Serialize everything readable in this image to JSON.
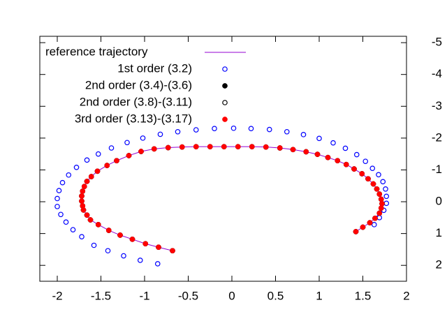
{
  "chart_data": {
    "type": "scatter",
    "xlim": [
      -2.2,
      2
    ],
    "xticks": [
      -2,
      -1.5,
      -1,
      -0.5,
      0,
      0.5,
      1,
      1.5,
      2
    ],
    "ylim": [
      -5.2,
      2.5
    ],
    "yticks": [
      -5,
      -4,
      -3,
      -2,
      -1,
      0,
      1,
      2
    ],
    "y_reversed": true,
    "y_axis_side": "right",
    "legend": "upper left",
    "series": [
      {
        "name": "reference trajectory",
        "color": "#9400d3",
        "style": "line",
        "x": [
          -0.68,
          -0.84,
          -0.99,
          -1.14,
          -1.28,
          -1.41,
          -1.53,
          -1.62,
          -1.66,
          -1.7,
          -1.71,
          -1.72,
          -1.72,
          -1.71,
          -1.69,
          -1.66,
          -1.61,
          -1.54,
          -1.43,
          -1.32,
          -1.18,
          -1.04,
          -0.89,
          -0.73,
          -0.57,
          -0.41,
          -0.25,
          -0.09,
          0.07,
          0.23,
          0.39,
          0.55,
          0.7,
          0.85,
          0.98,
          1.1,
          1.21,
          1.31,
          1.4,
          1.49,
          1.56,
          1.62,
          1.66,
          1.69,
          1.71,
          1.72,
          1.71,
          1.69,
          1.64,
          1.58,
          1.5,
          1.42
        ],
        "values": [
          1.54,
          1.43,
          1.32,
          1.18,
          1.05,
          0.9,
          0.72,
          0.57,
          0.42,
          0.26,
          0.13,
          -0.02,
          -0.18,
          -0.33,
          -0.48,
          -0.64,
          -0.79,
          -0.96,
          -1.14,
          -1.29,
          -1.45,
          -1.58,
          -1.66,
          -1.7,
          -1.72,
          -1.73,
          -1.73,
          -1.73,
          -1.73,
          -1.73,
          -1.72,
          -1.69,
          -1.64,
          -1.57,
          -1.49,
          -1.39,
          -1.29,
          -1.17,
          -1.03,
          -0.88,
          -0.72,
          -0.56,
          -0.4,
          -0.24,
          -0.08,
          0.06,
          0.2,
          0.36,
          0.52,
          0.66,
          0.8,
          0.94
        ]
      },
      {
        "name": "1st order (3.2)",
        "color": "#0000ff",
        "style": "open",
        "x": [
          -0.85,
          -1.05,
          -1.24,
          -1.42,
          -1.58,
          -1.72,
          -1.82,
          -1.9,
          -1.96,
          -2.0,
          -2.0,
          -1.98,
          -1.94,
          -1.87,
          -1.78,
          -1.66,
          -1.53,
          -1.38,
          -1.2,
          -1.02,
          -0.82,
          -0.62,
          -0.41,
          -0.2,
          0.02,
          0.22,
          0.43,
          0.63,
          0.82,
          1.0,
          1.16,
          1.3,
          1.43,
          1.53,
          1.61,
          1.68,
          1.73,
          1.76,
          1.77,
          1.77,
          1.74,
          1.69,
          1.63
        ],
        "values": [
          1.95,
          1.84,
          1.7,
          1.54,
          1.37,
          1.1,
          0.88,
          0.64,
          0.4,
          0.15,
          -0.1,
          -0.35,
          -0.6,
          -0.84,
          -1.08,
          -1.31,
          -1.5,
          -1.69,
          -1.86,
          -2.0,
          -2.12,
          -2.2,
          -2.26,
          -2.3,
          -2.31,
          -2.3,
          -2.27,
          -2.2,
          -2.11,
          -1.99,
          -1.85,
          -1.68,
          -1.48,
          -1.27,
          -1.05,
          -0.85,
          -0.63,
          -0.4,
          -0.17,
          0.05,
          0.27,
          0.5,
          0.72
        ]
      },
      {
        "name": "2nd order (3.4)-(3.6)",
        "color": "#000000",
        "style": "filled",
        "x": [
          -0.68,
          -0.84,
          -0.99,
          -1.14,
          -1.28,
          -1.41,
          -1.53,
          -1.62,
          -1.66,
          -1.7,
          -1.71,
          -1.72,
          -1.72,
          -1.71,
          -1.69,
          -1.66,
          -1.61,
          -1.54,
          -1.43,
          -1.32,
          -1.18,
          -1.04,
          -0.89,
          -0.73,
          -0.57,
          -0.41,
          -0.25,
          -0.09,
          0.07,
          0.23,
          0.39,
          0.55,
          0.7,
          0.85,
          0.98,
          1.1,
          1.21,
          1.31,
          1.4,
          1.49,
          1.56,
          1.62,
          1.66,
          1.69,
          1.71,
          1.72,
          1.71,
          1.69,
          1.64,
          1.58,
          1.5,
          1.42
        ],
        "values": [
          1.54,
          1.43,
          1.32,
          1.18,
          1.05,
          0.9,
          0.72,
          0.57,
          0.42,
          0.26,
          0.13,
          -0.02,
          -0.18,
          -0.33,
          -0.48,
          -0.64,
          -0.79,
          -0.96,
          -1.14,
          -1.29,
          -1.45,
          -1.58,
          -1.66,
          -1.7,
          -1.72,
          -1.73,
          -1.73,
          -1.73,
          -1.73,
          -1.73,
          -1.72,
          -1.69,
          -1.64,
          -1.57,
          -1.49,
          -1.39,
          -1.29,
          -1.17,
          -1.03,
          -0.88,
          -0.72,
          -0.56,
          -0.4,
          -0.24,
          -0.08,
          0.06,
          0.2,
          0.36,
          0.52,
          0.66,
          0.8,
          0.94
        ]
      },
      {
        "name": "2nd order (3.8)-(3.11)",
        "color": "#000000",
        "style": "open",
        "x": [
          -0.68,
          -0.84,
          -0.99,
          -1.14,
          -1.28,
          -1.41,
          -1.53,
          -1.62,
          -1.66,
          -1.7,
          -1.71,
          -1.72,
          -1.72,
          -1.71,
          -1.69,
          -1.66,
          -1.61,
          -1.54,
          -1.43,
          -1.32,
          -1.18,
          -1.04,
          -0.89,
          -0.73,
          -0.57,
          -0.41,
          -0.25,
          -0.09,
          0.07,
          0.23,
          0.39,
          0.55,
          0.7,
          0.85,
          0.98,
          1.1,
          1.21,
          1.31,
          1.4,
          1.49,
          1.56,
          1.62,
          1.66,
          1.69,
          1.71,
          1.72,
          1.71,
          1.69,
          1.64,
          1.58,
          1.5,
          1.42
        ],
        "values": [
          1.54,
          1.43,
          1.32,
          1.18,
          1.05,
          0.9,
          0.72,
          0.57,
          0.42,
          0.26,
          0.13,
          -0.02,
          -0.18,
          -0.33,
          -0.48,
          -0.64,
          -0.79,
          -0.96,
          -1.14,
          -1.29,
          -1.45,
          -1.58,
          -1.66,
          -1.7,
          -1.72,
          -1.73,
          -1.73,
          -1.73,
          -1.73,
          -1.73,
          -1.72,
          -1.69,
          -1.64,
          -1.57,
          -1.49,
          -1.39,
          -1.29,
          -1.17,
          -1.03,
          -0.88,
          -0.72,
          -0.56,
          -0.4,
          -0.24,
          -0.08,
          0.06,
          0.2,
          0.36,
          0.52,
          0.66,
          0.8,
          0.94
        ]
      },
      {
        "name": "3rd order (3.13)-(3.17)",
        "color": "#ff0000",
        "style": "filled",
        "x": [
          -0.68,
          -0.84,
          -0.99,
          -1.14,
          -1.28,
          -1.41,
          -1.53,
          -1.62,
          -1.66,
          -1.7,
          -1.71,
          -1.72,
          -1.72,
          -1.71,
          -1.69,
          -1.66,
          -1.61,
          -1.54,
          -1.43,
          -1.32,
          -1.18,
          -1.04,
          -0.89,
          -0.73,
          -0.57,
          -0.41,
          -0.25,
          -0.09,
          0.07,
          0.23,
          0.39,
          0.55,
          0.7,
          0.85,
          0.98,
          1.1,
          1.21,
          1.31,
          1.4,
          1.49,
          1.56,
          1.62,
          1.66,
          1.69,
          1.71,
          1.72,
          1.71,
          1.69,
          1.64,
          1.58,
          1.5,
          1.42
        ],
        "values": [
          1.54,
          1.43,
          1.32,
          1.18,
          1.05,
          0.9,
          0.72,
          0.57,
          0.42,
          0.26,
          0.13,
          -0.02,
          -0.18,
          -0.33,
          -0.48,
          -0.64,
          -0.79,
          -0.96,
          -1.14,
          -1.29,
          -1.45,
          -1.58,
          -1.66,
          -1.7,
          -1.72,
          -1.73,
          -1.73,
          -1.73,
          -1.73,
          -1.73,
          -1.72,
          -1.69,
          -1.64,
          -1.57,
          -1.49,
          -1.39,
          -1.29,
          -1.17,
          -1.03,
          -0.88,
          -0.72,
          -0.56,
          -0.4,
          -0.24,
          -0.08,
          0.06,
          0.2,
          0.36,
          0.52,
          0.66,
          0.8,
          0.94
        ]
      }
    ]
  }
}
